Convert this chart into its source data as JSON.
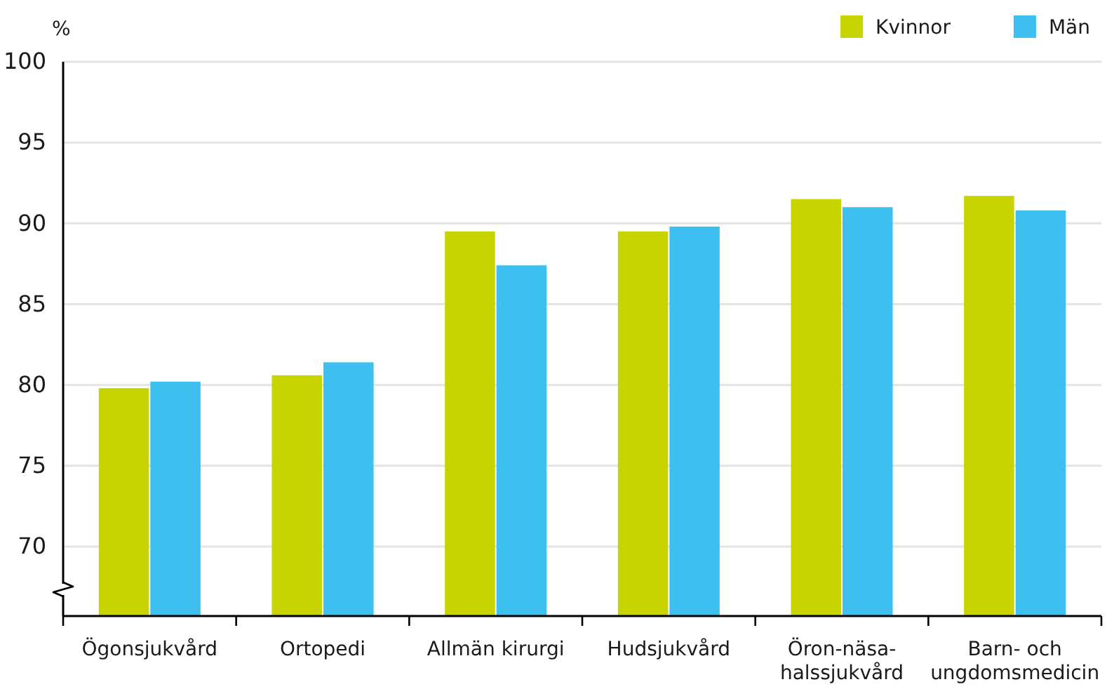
{
  "chart_data": {
    "type": "bar",
    "ylabel": "%",
    "categories": [
      "Ögonsjukvård",
      "Ortopedi",
      "Allmän kirurgi",
      "Hudsjukvård",
      "Öron-näsa-halssjukvård",
      "Barn- och ungdomsmedicin"
    ],
    "series": [
      {
        "name": "Kvinnor",
        "color": "#c8d400",
        "values": [
          79.8,
          80.6,
          89.5,
          89.5,
          91.5,
          91.7
        ]
      },
      {
        "name": "Män",
        "color": "#3dbfef",
        "values": [
          80.2,
          81.4,
          87.4,
          89.8,
          91.0,
          90.8
        ]
      }
    ],
    "ylim": [
      65.7,
      100
    ],
    "yticks": [
      70,
      75,
      80,
      85,
      90,
      95,
      100
    ],
    "grid": "y",
    "legend": "top right"
  }
}
